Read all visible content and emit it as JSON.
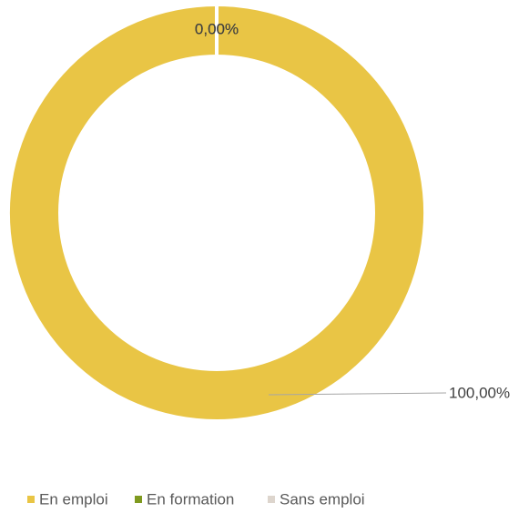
{
  "chart_data": {
    "type": "donut",
    "categories": [
      "En emploi",
      "En formation",
      "Sans emploi"
    ],
    "values": [
      100,
      0,
      0
    ],
    "value_labels": [
      "100,00%",
      "0,00%",
      "0,00%"
    ],
    "colors": [
      "#E9C545",
      "#7F9A1F",
      "#DDD5CD"
    ],
    "legend": "bottom"
  }
}
